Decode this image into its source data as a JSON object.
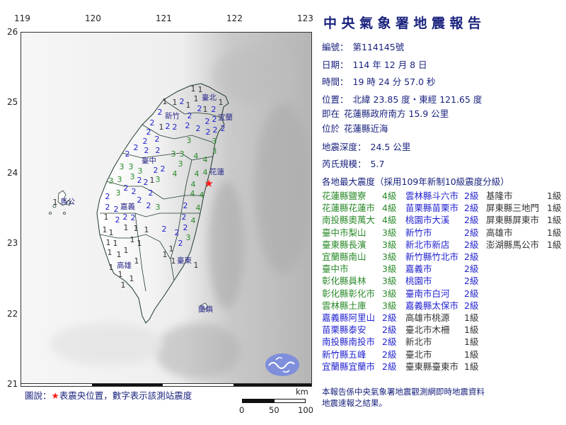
{
  "header": {
    "title": "中央氣象署地震報告",
    "report_no_label": "編號：",
    "report_no": "第114145號",
    "date_label": "日期：",
    "date": "114 年 12 月 8 日",
    "time_label": "時間：",
    "time": "19 時 24 分 57.0 秒",
    "location_label": "位置：",
    "location": "北緯 23.85 度・東經 121.65 度",
    "relative_label": "即在",
    "relative": "花蓮縣政府南方 15.9 公里",
    "region_label": "位於",
    "region": "花蓮縣近海",
    "depth_label": "地震深度：",
    "depth": "24.5 公里",
    "magnitude_label": "芮氏規模：",
    "magnitude": "5.7",
    "intensity_heading": "各地最大震度（採用109年新制10級震度分級）"
  },
  "colors": {
    "level4": "#2a8a2a",
    "level3": "#2a8a2a",
    "level2": "#2323d0",
    "level1": "#333333",
    "navy": "#1a237e",
    "epicenter": "#ff1a1a"
  },
  "intensity_columns": [
    [
      {
        "place": "花蓮縣鹽寮",
        "level": "4級",
        "lv": 4
      },
      {
        "place": "花蓮縣花蓮市",
        "level": "4級",
        "lv": 4
      },
      {
        "place": "南投縣奧萬大",
        "level": "4級",
        "lv": 4
      },
      {
        "place": "臺中市梨山",
        "level": "3級",
        "lv": 3
      },
      {
        "place": "臺東縣長濱",
        "level": "3級",
        "lv": 3
      },
      {
        "place": "宜蘭縣南山",
        "level": "3級",
        "lv": 3
      },
      {
        "place": "臺中市",
        "level": "3級",
        "lv": 3
      },
      {
        "place": "彰化縣員林",
        "level": "3級",
        "lv": 3
      },
      {
        "place": "彰化縣彰化市",
        "level": "3級",
        "lv": 3
      },
      {
        "place": "雲林縣土庫",
        "level": "3級",
        "lv": 3
      },
      {
        "place": "嘉義縣阿里山",
        "level": "2級",
        "lv": 2
      },
      {
        "place": "苗栗縣泰安",
        "level": "2級",
        "lv": 2
      },
      {
        "place": "南投縣南投市",
        "level": "2級",
        "lv": 2
      },
      {
        "place": "新竹縣五峰",
        "level": "2級",
        "lv": 2
      },
      {
        "place": "宜蘭縣宜蘭市",
        "level": "2級",
        "lv": 2
      }
    ],
    [
      {
        "place": "雲林縣斗六市",
        "level": "2級",
        "lv": 2
      },
      {
        "place": "苗栗縣苗栗市",
        "level": "2級",
        "lv": 2
      },
      {
        "place": "桃園市大溪",
        "level": "2級",
        "lv": 2
      },
      {
        "place": "新竹市",
        "level": "2級",
        "lv": 2
      },
      {
        "place": "新北市新店",
        "level": "2級",
        "lv": 2
      },
      {
        "place": "新竹縣竹北市",
        "level": "2級",
        "lv": 2
      },
      {
        "place": "嘉義市",
        "level": "2級",
        "lv": 2
      },
      {
        "place": "桃園市",
        "level": "2級",
        "lv": 2
      },
      {
        "place": "臺南市白河",
        "level": "2級",
        "lv": 2
      },
      {
        "place": "嘉義縣太保市",
        "level": "2級",
        "lv": 2
      },
      {
        "place": "高雄市桃源",
        "level": "1級",
        "lv": 1
      },
      {
        "place": "臺北市木柵",
        "level": "1級",
        "lv": 1
      },
      {
        "place": "新北市",
        "level": "1級",
        "lv": 1
      },
      {
        "place": "臺北市",
        "level": "1級",
        "lv": 1
      },
      {
        "place": "臺東縣臺東市",
        "level": "1級",
        "lv": 1
      }
    ],
    [
      {
        "place": "基隆市",
        "level": "1級",
        "lv": 1
      },
      {
        "place": "屏東縣三地門",
        "level": "1級",
        "lv": 1
      },
      {
        "place": "屏東縣屏東市",
        "level": "1級",
        "lv": 1
      },
      {
        "place": "高雄市",
        "level": "1級",
        "lv": 1
      },
      {
        "place": "澎湖縣馬公市",
        "level": "1級",
        "lv": 1
      }
    ]
  ],
  "footer": {
    "line1": "本報告係中央氣象署地震觀測網即時地震資料",
    "line2": "地震速報之結果。"
  },
  "map": {
    "lon_ticks": [
      "119",
      "120",
      "121",
      "122",
      "123"
    ],
    "lat_ticks": [
      "26",
      "25",
      "24",
      "23",
      "22",
      "21"
    ],
    "legend_prefix": "圖說：",
    "legend_star": "★",
    "legend_text": "表震央位置，數字表示該測站震度",
    "scale_unit": "km",
    "scale_labels": [
      "0",
      "50",
      "100"
    ],
    "epicenter": {
      "lon": 121.65,
      "lat": 23.85
    },
    "cities": [
      {
        "name": "臺北",
        "lon": 121.55,
        "lat": 25.07
      },
      {
        "name": "新竹",
        "lon": 121.03,
        "lat": 24.81
      },
      {
        "name": "宜蘭",
        "lon": 121.78,
        "lat": 24.79
      },
      {
        "name": "臺中",
        "lon": 120.7,
        "lat": 24.17
      },
      {
        "name": "花蓮",
        "lon": 121.66,
        "lat": 24.01
      },
      {
        "name": "嘉義",
        "lon": 120.4,
        "lat": 23.52
      },
      {
        "name": "馬公",
        "lon": 119.55,
        "lat": 23.59
      },
      {
        "name": "高雄",
        "lon": 120.35,
        "lat": 22.69
      },
      {
        "name": "臺東",
        "lon": 121.2,
        "lat": 22.76
      },
      {
        "name": "蘭嶼",
        "lon": 121.5,
        "lat": 22.06
      }
    ],
    "stations": [
      [
        121.43,
        25.2,
        1
      ],
      [
        121.17,
        25.01,
        1
      ],
      [
        121.27,
        25.02,
        2
      ],
      [
        121.03,
        25.02,
        1
      ],
      [
        121.47,
        25.06,
        1
      ],
      [
        121.53,
        25.06,
        1
      ],
      [
        121.36,
        24.97,
        1
      ],
      [
        121.52,
        24.99,
        2
      ],
      [
        121.82,
        25.01,
        1
      ],
      [
        121.28,
        24.92,
        2
      ],
      [
        121.53,
        24.91,
        1
      ],
      [
        121.82,
        24.91,
        2
      ],
      [
        121.0,
        24.87,
        2
      ],
      [
        121.07,
        24.77,
        2
      ],
      [
        121.35,
        24.72,
        2
      ],
      [
        121.73,
        24.81,
        2
      ],
      [
        121.67,
        24.74,
        2
      ],
      [
        121.85,
        24.64,
        2
      ],
      [
        121.5,
        24.64,
        2
      ],
      [
        121.57,
        24.66,
        2
      ],
      [
        121.7,
        24.66,
        2
      ],
      [
        120.85,
        24.72,
        2
      ],
      [
        120.8,
        24.59,
        2
      ],
      [
        120.98,
        24.66,
        1
      ],
      [
        121.1,
        24.66,
        2
      ],
      [
        121.37,
        24.47,
        3
      ],
      [
        121.73,
        24.46,
        3
      ],
      [
        121.73,
        24.36,
        3
      ],
      [
        120.92,
        24.49,
        2
      ],
      [
        120.75,
        24.46,
        2
      ],
      [
        120.77,
        24.37,
        2
      ],
      [
        120.62,
        24.37,
        2
      ],
      [
        120.93,
        24.32,
        2
      ],
      [
        120.5,
        24.27,
        2
      ],
      [
        121.15,
        24.27,
        3
      ],
      [
        121.23,
        24.27,
        3
      ],
      [
        121.47,
        24.24,
        4
      ],
      [
        121.6,
        24.19,
        4
      ],
      [
        121.25,
        24.17,
        3
      ],
      [
        120.42,
        24.09,
        3
      ],
      [
        120.55,
        24.09,
        3
      ],
      [
        120.68,
        24.07,
        3
      ],
      [
        120.9,
        24.11,
        2
      ],
      [
        120.93,
        24.06,
        2
      ],
      [
        120.57,
        23.99,
        3
      ],
      [
        121.17,
        23.99,
        4
      ],
      [
        121.48,
        23.99,
        4
      ],
      [
        121.6,
        24.01,
        4
      ],
      [
        120.85,
        23.94,
        1
      ],
      [
        120.89,
        23.91,
        3
      ],
      [
        120.67,
        23.94,
        2
      ],
      [
        120.72,
        23.87,
        2
      ],
      [
        120.27,
        23.89,
        3
      ],
      [
        120.35,
        23.91,
        3
      ],
      [
        121.43,
        23.84,
        4
      ],
      [
        121.55,
        23.82,
        4
      ],
      [
        120.48,
        23.79,
        2
      ],
      [
        120.37,
        23.72,
        3
      ],
      [
        120.52,
        23.74,
        2
      ],
      [
        120.83,
        23.72,
        2
      ],
      [
        121.42,
        23.71,
        4
      ],
      [
        120.22,
        23.67,
        2
      ],
      [
        120.22,
        23.56,
        2
      ],
      [
        120.3,
        23.49,
        2
      ],
      [
        120.47,
        23.57,
        2
      ],
      [
        120.67,
        23.62,
        2
      ],
      [
        120.8,
        23.54,
        2
      ],
      [
        120.93,
        23.52,
        3
      ],
      [
        120.58,
        23.47,
        2
      ],
      [
        121.32,
        23.54,
        2
      ],
      [
        121.5,
        23.51,
        4
      ],
      [
        121.3,
        23.38,
        2
      ],
      [
        121.43,
        23.33,
        4
      ],
      [
        120.2,
        23.38,
        1
      ],
      [
        120.4,
        23.38,
        2
      ],
      [
        120.18,
        23.2,
        1
      ],
      [
        120.27,
        23.16,
        1
      ],
      [
        120.48,
        23.23,
        1
      ],
      [
        120.62,
        23.26,
        1
      ],
      [
        120.77,
        23.2,
        1
      ],
      [
        121.02,
        23.21,
        2
      ],
      [
        121.2,
        23.16,
        2
      ],
      [
        121.28,
        23.23,
        2
      ],
      [
        121.36,
        23.13,
        3
      ],
      [
        120.23,
        23.06,
        1
      ],
      [
        120.33,
        23.05,
        1
      ],
      [
        120.57,
        23.1,
        1
      ],
      [
        120.63,
        23.01,
        1
      ],
      [
        121.29,
        23.01,
        2
      ],
      [
        120.25,
        22.88,
        1
      ],
      [
        120.48,
        22.91,
        1
      ],
      [
        121.12,
        22.93,
        1
      ],
      [
        121.07,
        22.85,
        1
      ],
      [
        121.15,
        22.76,
        1
      ],
      [
        120.63,
        22.76,
        1
      ],
      [
        120.48,
        22.75,
        1
      ],
      [
        120.27,
        22.66,
        1
      ],
      [
        120.4,
        22.6,
        1
      ],
      [
        120.44,
        22.48,
        1
      ],
      [
        120.56,
        22.5,
        1
      ],
      [
        121.47,
        22.7,
        1
      ],
      [
        119.55,
        23.59,
        1
      ]
    ]
  }
}
